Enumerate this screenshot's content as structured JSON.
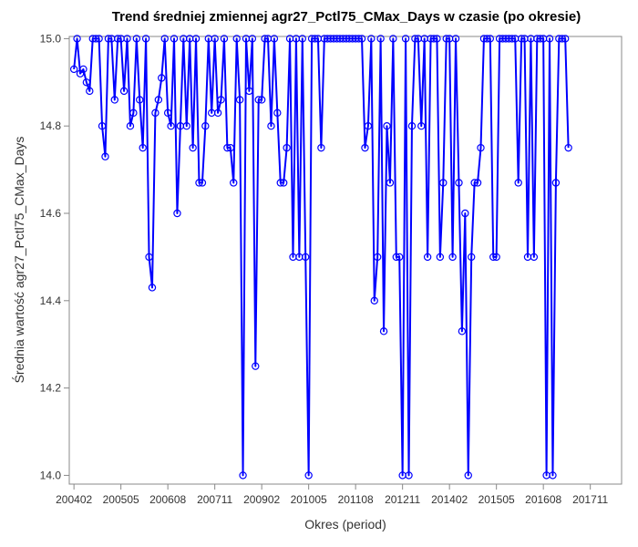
{
  "chart_data": {
    "type": "line",
    "title": "Trend średniej zmiennej agr27_Pctl75_CMax_Days w czasie (po okresie)",
    "xlabel": "Okres (period)",
    "ylabel": "Średnia wartość agr27_Pctl75_CMax_Days",
    "ylim": [
      13.98,
      15.005
    ],
    "yticks": [
      14.0,
      14.2,
      14.4,
      14.6,
      14.8,
      15.0
    ],
    "ytick_labels": [
      "14.0",
      "14.2",
      "14.4",
      "14.6",
      "14.8",
      "15.0"
    ],
    "xticks": [
      0,
      15,
      30,
      45,
      60,
      75,
      90,
      105,
      120,
      135,
      150,
      165
    ],
    "xtick_labels": [
      "200402",
      "200505",
      "200608",
      "200711",
      "200902",
      "201005",
      "201108",
      "201211",
      "201402",
      "201505",
      "201608",
      "201711"
    ],
    "xlim": [
      -1.5,
      175
    ],
    "grid": false,
    "line_color": "#0000ff",
    "marker": "circle-open",
    "series": [
      {
        "values": [
          14.93,
          15.0,
          14.92,
          14.93,
          14.9,
          14.88,
          15.0,
          15.0,
          15.0,
          14.8,
          14.73,
          15.0,
          15.0,
          14.86,
          15.0,
          15.0,
          14.88,
          15.0,
          14.8,
          14.83,
          15.0,
          14.86,
          14.75,
          15.0,
          14.5,
          14.43,
          14.83,
          14.86,
          14.91,
          15.0,
          14.83,
          14.8,
          15.0,
          14.6,
          14.8,
          15.0,
          14.8,
          15.0,
          14.75,
          15.0,
          14.67,
          14.67,
          14.8,
          15.0,
          14.83,
          15.0,
          14.83,
          14.86,
          15.0,
          14.75,
          14.75,
          14.67,
          15.0,
          14.86,
          14.0,
          15.0,
          14.88,
          15.0,
          14.25,
          14.86,
          14.86,
          15.0,
          15.0,
          14.8,
          15.0,
          14.83,
          14.67,
          14.67,
          14.75,
          15.0,
          14.5,
          15.0,
          14.5,
          15.0,
          14.5,
          14.0,
          15.0,
          15.0,
          15.0,
          14.75,
          15.0,
          15.0,
          15.0,
          15.0,
          15.0,
          15.0,
          15.0,
          15.0,
          15.0,
          15.0,
          15.0,
          15.0,
          15.0,
          14.75,
          14.8,
          15.0,
          14.4,
          14.5,
          15.0,
          14.33,
          14.8,
          14.67,
          15.0,
          14.5,
          14.5,
          14.0,
          15.0,
          14.0,
          14.8,
          15.0,
          15.0,
          14.8,
          15.0,
          14.5,
          15.0,
          15.0,
          15.0,
          14.5,
          14.67,
          15.0,
          15.0,
          14.5,
          15.0,
          14.67,
          14.33,
          14.6,
          14.0,
          14.5,
          14.67,
          14.67,
          14.75,
          15.0,
          15.0,
          15.0,
          14.5,
          14.5,
          15.0,
          15.0,
          15.0,
          15.0,
          15.0,
          15.0,
          14.67,
          15.0,
          15.0,
          14.5,
          15.0,
          14.5,
          15.0,
          15.0,
          15.0,
          14.0,
          15.0,
          14.0,
          14.67,
          15.0,
          15.0,
          15.0,
          14.75
        ]
      }
    ]
  }
}
